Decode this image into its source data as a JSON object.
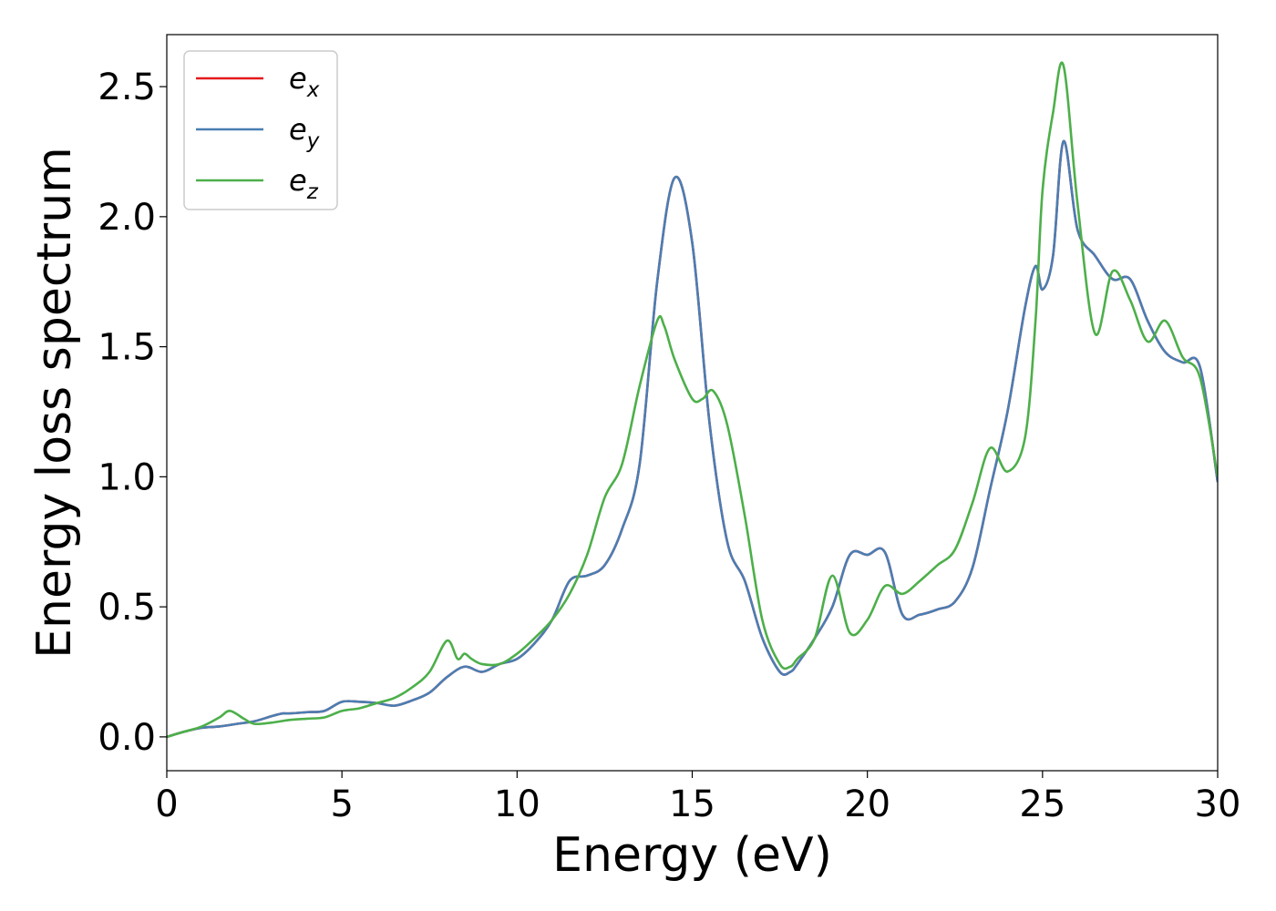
{
  "chart_data": {
    "type": "line",
    "title": "",
    "xlabel": "Energy (eV)",
    "ylabel": "Energy loss spectrum",
    "xlim": [
      0,
      30
    ],
    "ylim": [
      -0.13,
      2.7
    ],
    "xticks": [
      0,
      5,
      10,
      15,
      20,
      25,
      30
    ],
    "xtick_labels": [
      "0",
      "5",
      "10",
      "15",
      "20",
      "25",
      "30"
    ],
    "yticks": [
      0.0,
      0.5,
      1.0,
      1.5,
      2.0,
      2.5
    ],
    "ytick_labels": [
      "0.0",
      "0.5",
      "1.0",
      "1.5",
      "2.0",
      "2.5"
    ],
    "grid": false,
    "legend_position": "top-left",
    "series": [
      {
        "name": "e_x",
        "legend_base": "e",
        "legend_sub": "x",
        "color": "#e41a1c",
        "x": [
          0,
          0.5,
          1,
          1.5,
          2,
          2.5,
          3,
          3.3,
          3.5,
          4,
          4.5,
          5,
          5.5,
          6,
          6.5,
          7,
          7.5,
          8,
          8.5,
          9,
          9.5,
          10,
          10.5,
          11,
          11.5,
          12,
          12.5,
          13,
          13.5,
          14,
          14.5,
          15,
          15.5,
          16,
          16.5,
          17,
          17.5,
          17.8,
          18,
          18.5,
          19,
          19.5,
          20,
          20.5,
          21,
          21.5,
          22,
          22.5,
          23,
          23.5,
          24,
          24.5,
          24.8,
          25,
          25.3,
          25.6,
          26,
          26.5,
          27,
          27.5,
          28,
          28.5,
          29,
          29.5,
          30
        ],
        "y": [
          0.0,
          0.02,
          0.035,
          0.04,
          0.05,
          0.06,
          0.08,
          0.09,
          0.09,
          0.095,
          0.1,
          0.135,
          0.135,
          0.13,
          0.12,
          0.14,
          0.17,
          0.23,
          0.27,
          0.25,
          0.28,
          0.3,
          0.36,
          0.45,
          0.6,
          0.62,
          0.66,
          0.8,
          1.05,
          1.75,
          2.15,
          1.9,
          1.2,
          0.75,
          0.6,
          0.38,
          0.25,
          0.25,
          0.28,
          0.38,
          0.5,
          0.7,
          0.7,
          0.71,
          0.47,
          0.47,
          0.49,
          0.52,
          0.65,
          0.95,
          1.25,
          1.65,
          1.81,
          1.72,
          1.85,
          2.29,
          1.95,
          1.85,
          1.76,
          1.76,
          1.6,
          1.48,
          1.44,
          1.42,
          0.98
        ]
      },
      {
        "name": "e_y",
        "legend_base": "e",
        "legend_sub": "y",
        "color": "#4a7eb3",
        "x": [
          0,
          0.5,
          1,
          1.5,
          2,
          2.5,
          3,
          3.3,
          3.5,
          4,
          4.5,
          5,
          5.5,
          6,
          6.5,
          7,
          7.5,
          8,
          8.5,
          9,
          9.5,
          10,
          10.5,
          11,
          11.5,
          12,
          12.5,
          13,
          13.5,
          14,
          14.5,
          15,
          15.5,
          16,
          16.5,
          17,
          17.5,
          17.8,
          18,
          18.5,
          19,
          19.5,
          20,
          20.5,
          21,
          21.5,
          22,
          22.5,
          23,
          23.5,
          24,
          24.5,
          24.8,
          25,
          25.3,
          25.6,
          26,
          26.5,
          27,
          27.5,
          28,
          28.5,
          29,
          29.5,
          30
        ],
        "y": [
          0.0,
          0.02,
          0.035,
          0.04,
          0.05,
          0.06,
          0.08,
          0.09,
          0.09,
          0.095,
          0.1,
          0.135,
          0.135,
          0.13,
          0.12,
          0.14,
          0.17,
          0.23,
          0.27,
          0.25,
          0.28,
          0.3,
          0.36,
          0.45,
          0.6,
          0.62,
          0.66,
          0.8,
          1.05,
          1.75,
          2.15,
          1.9,
          1.2,
          0.75,
          0.6,
          0.38,
          0.25,
          0.25,
          0.28,
          0.38,
          0.5,
          0.7,
          0.7,
          0.71,
          0.47,
          0.47,
          0.49,
          0.52,
          0.65,
          0.95,
          1.25,
          1.65,
          1.81,
          1.72,
          1.85,
          2.29,
          1.95,
          1.85,
          1.76,
          1.76,
          1.6,
          1.48,
          1.44,
          1.42,
          0.98
        ]
      },
      {
        "name": "e_z",
        "legend_base": "e",
        "legend_sub": "z",
        "color": "#4daf4a",
        "x": [
          0,
          0.5,
          1,
          1.5,
          1.8,
          2.2,
          2.5,
          3,
          3.5,
          4,
          4.5,
          5,
          5.5,
          6,
          6.5,
          7,
          7.5,
          8,
          8.3,
          8.5,
          8.7,
          9,
          9.5,
          10,
          10.5,
          11,
          11.5,
          12,
          12.5,
          13,
          13.5,
          14,
          14.2,
          14.5,
          15,
          15.3,
          15.6,
          16,
          16.5,
          17,
          17.5,
          17.8,
          18,
          18.5,
          19,
          19.5,
          20,
          20.5,
          21,
          21.5,
          22,
          22.5,
          23,
          23.5,
          24,
          24.5,
          24.8,
          25,
          25.3,
          25.6,
          26,
          26.5,
          27,
          27.5,
          28,
          28.5,
          29,
          29.5,
          30
        ],
        "y": [
          0.0,
          0.02,
          0.04,
          0.075,
          0.1,
          0.07,
          0.05,
          0.055,
          0.065,
          0.07,
          0.075,
          0.1,
          0.11,
          0.13,
          0.15,
          0.19,
          0.25,
          0.37,
          0.3,
          0.32,
          0.3,
          0.28,
          0.28,
          0.32,
          0.38,
          0.45,
          0.55,
          0.7,
          0.92,
          1.05,
          1.35,
          1.6,
          1.58,
          1.45,
          1.3,
          1.3,
          1.33,
          1.2,
          0.85,
          0.45,
          0.28,
          0.27,
          0.3,
          0.38,
          0.62,
          0.4,
          0.45,
          0.58,
          0.55,
          0.6,
          0.66,
          0.72,
          0.9,
          1.11,
          1.02,
          1.15,
          1.6,
          2.1,
          2.4,
          2.58,
          2.05,
          1.55,
          1.79,
          1.68,
          1.52,
          1.6,
          1.46,
          1.38,
          1.0
        ]
      }
    ]
  }
}
